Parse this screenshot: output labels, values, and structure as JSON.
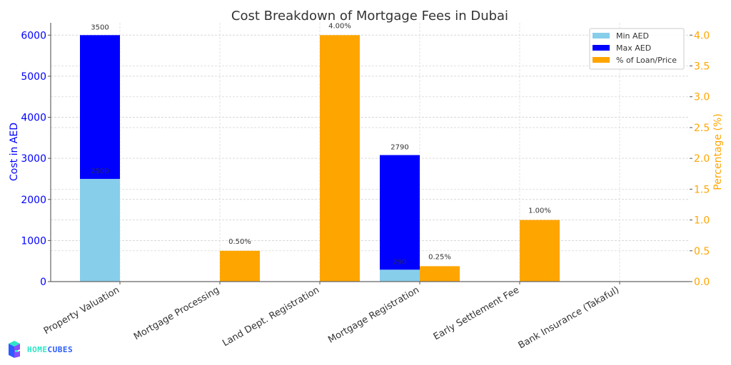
{
  "chart_data": {
    "type": "bar",
    "title": "Cost Breakdown of Mortgage Fees in Dubai",
    "xlabel": "",
    "ylabel": "Cost in AED",
    "y2label": "Percentage (%)",
    "categories": [
      "Property Valuation",
      "Mortgage Processing",
      "Land Dept. Registration",
      "Mortgage Registration",
      "Early Settlement Fee",
      "Bank Insurance (Takaful)"
    ],
    "series": [
      {
        "name": "Min AED",
        "axis": "left",
        "color": "#87ceeb",
        "values": [
          2500,
          0,
          0,
          290,
          0,
          0
        ],
        "labels": [
          "2500",
          "",
          "",
          "290",
          "",
          ""
        ]
      },
      {
        "name": "Max AED",
        "axis": "left",
        "color": "#0000ff",
        "stacked_on": "Min AED",
        "values": [
          3500,
          0,
          0,
          2790,
          0,
          0
        ],
        "labels": [
          "3500",
          "",
          "",
          "2790",
          "",
          ""
        ]
      },
      {
        "name": "% of Loan/Price",
        "axis": "right",
        "color": "#ffa500",
        "values": [
          0,
          0.5,
          4.0,
          0.25,
          1.0,
          0
        ],
        "labels": [
          "",
          "0.50%",
          "4.00%",
          "0.25%",
          "1.00%",
          ""
        ]
      }
    ],
    "ylim": [
      0,
      6300
    ],
    "y2lim": [
      0,
      4.2
    ],
    "yticks": [
      0,
      1000,
      2000,
      3000,
      4000,
      5000,
      6000
    ],
    "y2ticks": [
      "0.0",
      "0.5",
      "1.0",
      "1.5",
      "2.0",
      "2.5",
      "3.0",
      "3.5",
      "4.0"
    ],
    "grid": true,
    "legend_position": "upper right",
    "left_axis_color": "#0000ff",
    "right_axis_color": "#ffa500"
  },
  "legend": {
    "items": [
      {
        "label": "Min AED",
        "color": "#87ceeb"
      },
      {
        "label": "Max AED",
        "color": "#0000ff"
      },
      {
        "label": "% of Loan/Price",
        "color": "#ffa500"
      }
    ]
  },
  "logo": {
    "part1": "HOME",
    "part2": "CUBES"
  }
}
